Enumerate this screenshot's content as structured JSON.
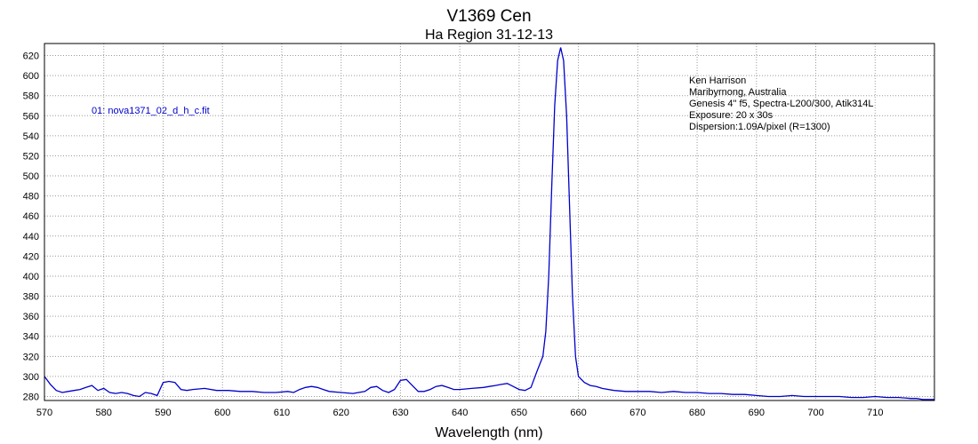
{
  "chart_data": {
    "type": "line",
    "title": "V1369 Cen",
    "subtitle": "Ha Region 31-12-13",
    "xlabel": "Wavelength (nm)",
    "ylabel": "",
    "xlim": [
      570,
      720
    ],
    "ylim": [
      276,
      632
    ],
    "x_ticks": [
      570,
      580,
      590,
      600,
      610,
      620,
      630,
      640,
      650,
      660,
      670,
      680,
      690,
      700,
      710
    ],
    "y_ticks": [
      280,
      300,
      320,
      340,
      360,
      380,
      400,
      420,
      440,
      460,
      480,
      500,
      520,
      540,
      560,
      580,
      600,
      620
    ],
    "grid": true,
    "legend_position": "top-left",
    "series": [
      {
        "name": "01: nova1371_02_d_h_c.fit",
        "color": "#0000cc",
        "x": [
          570,
          571,
          572,
          573,
          574,
          575,
          576,
          577,
          578,
          579,
          580,
          581,
          582,
          583,
          584,
          585,
          586,
          587,
          588,
          589,
          590,
          591,
          592,
          593,
          594,
          595,
          597,
          599,
          601,
          603,
          605,
          607,
          609,
          611,
          612,
          613,
          614,
          615,
          616,
          617,
          618,
          620,
          622,
          624,
          625,
          626,
          627,
          628,
          629,
          630,
          631,
          632,
          633,
          634,
          635,
          636,
          637,
          638,
          639,
          640,
          642,
          644,
          645,
          646,
          647,
          648,
          649,
          650,
          651,
          652,
          653,
          654,
          654.5,
          655,
          655.5,
          656,
          656.5,
          657,
          657.5,
          658,
          658.5,
          659,
          659.5,
          660,
          661,
          662,
          663,
          664,
          666,
          668,
          670,
          672,
          674,
          676,
          678,
          680,
          682,
          684,
          686,
          688,
          690,
          692,
          694,
          696,
          698,
          700,
          702,
          704,
          706,
          708,
          710,
          712,
          714,
          716,
          717,
          718,
          719,
          720
        ],
        "y": [
          300,
          292,
          286,
          284,
          285,
          286,
          287,
          289,
          291,
          286,
          288,
          284,
          283,
          284,
          283,
          281,
          280,
          284,
          283,
          281,
          294,
          295,
          294,
          287,
          286,
          287,
          288,
          286,
          286,
          285,
          285,
          284,
          284,
          285,
          284,
          287,
          289,
          290,
          289,
          287,
          285,
          284,
          283,
          285,
          289,
          290,
          286,
          284,
          287,
          296,
          297,
          291,
          285,
          285,
          287,
          290,
          291,
          289,
          287,
          287,
          288,
          289,
          290,
          291,
          292,
          293,
          290,
          287,
          286,
          289,
          305,
          320,
          345,
          400,
          490,
          570,
          615,
          628,
          615,
          560,
          470,
          380,
          320,
          300,
          294,
          291,
          290,
          288,
          286,
          285,
          285,
          285,
          284,
          285,
          284,
          284,
          283,
          283,
          282,
          282,
          281,
          280,
          280,
          281,
          280,
          280,
          280,
          280,
          279,
          279,
          280,
          279,
          279,
          278,
          278,
          277,
          277,
          277
        ]
      }
    ],
    "annotations": [
      "Ken Harrison",
      "Maribyrnong, Australia",
      "Genesis 4\" f5, Spectra-L200/300, Atik314L",
      "Exposure: 20 x 30s",
      "Dispersion:1.09A/pixel (R=1300)"
    ]
  }
}
